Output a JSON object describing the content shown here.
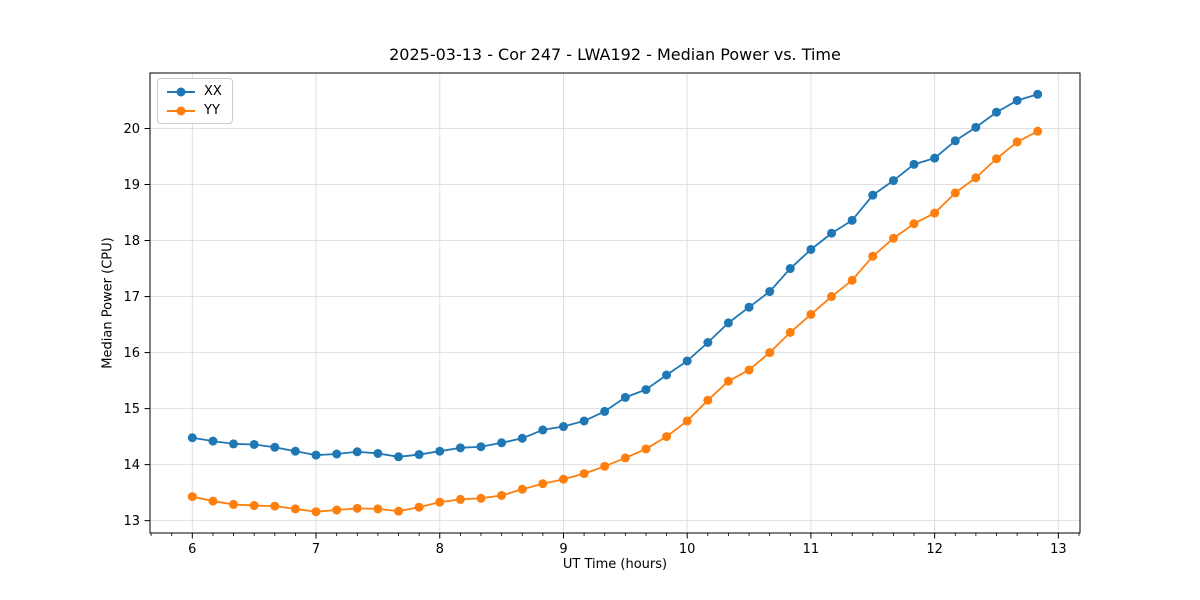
{
  "figure": {
    "title": "2025-03-13 - Cor 247 - LWA192 - Median Power vs. Time",
    "xlabel": "UT Time (hours)",
    "ylabel": "Median Power (CPU)"
  },
  "colors": {
    "series_xx": "#1f77b4",
    "series_yy": "#ff7f0e",
    "grid": "#e0e0e0",
    "axis": "#000000",
    "legend_border": "#cccccc"
  },
  "chart_data": {
    "type": "line",
    "title": "2025-03-13 - Cor 247 - LWA192 - Median Power vs. Time",
    "xlabel": "UT Time (hours)",
    "ylabel": "Median Power (CPU)",
    "xlim": [
      5.658,
      13.175
    ],
    "ylim": [
      12.78,
      20.99
    ],
    "xticks": [
      6,
      7,
      8,
      9,
      10,
      11,
      12,
      13
    ],
    "yticks": [
      13,
      14,
      15,
      16,
      17,
      18,
      19,
      20
    ],
    "x_minor_tick_step": 0.166667,
    "grid": true,
    "legend_position": "upper left",
    "marker": "circle",
    "x": [
      6.0,
      6.167,
      6.333,
      6.5,
      6.667,
      6.833,
      7.0,
      7.167,
      7.333,
      7.5,
      7.667,
      7.833,
      8.0,
      8.167,
      8.333,
      8.5,
      8.667,
      8.833,
      9.0,
      9.167,
      9.333,
      9.5,
      9.667,
      9.833,
      10.0,
      10.167,
      10.333,
      10.5,
      10.667,
      10.833,
      11.0,
      11.167,
      11.333,
      11.5,
      11.667,
      11.833,
      12.0,
      12.167,
      12.333,
      12.5,
      12.667,
      12.833
    ],
    "series": [
      {
        "name": "XX",
        "color": "#1f77b4",
        "values": [
          14.48,
          14.42,
          14.37,
          14.36,
          14.31,
          14.24,
          14.17,
          14.19,
          14.23,
          14.2,
          14.14,
          14.18,
          14.24,
          14.3,
          14.32,
          14.39,
          14.47,
          14.62,
          14.68,
          14.78,
          14.95,
          15.2,
          15.34,
          15.6,
          15.85,
          16.18,
          16.53,
          16.81,
          17.09,
          17.5,
          17.84,
          18.13,
          18.36,
          18.81,
          19.07,
          19.36,
          19.47,
          19.78,
          20.02,
          20.29,
          20.5,
          20.61
        ]
      },
      {
        "name": "YY",
        "color": "#ff7f0e",
        "values": [
          13.43,
          13.35,
          13.29,
          13.27,
          13.26,
          13.21,
          13.16,
          13.19,
          13.22,
          13.21,
          13.17,
          13.24,
          13.33,
          13.38,
          13.4,
          13.45,
          13.56,
          13.66,
          13.74,
          13.84,
          13.97,
          14.12,
          14.28,
          14.5,
          14.78,
          15.15,
          15.49,
          15.69,
          16.0,
          16.36,
          16.68,
          17.0,
          17.29,
          17.72,
          18.04,
          18.3,
          18.49,
          18.85,
          19.12,
          19.46,
          19.76,
          19.95
        ]
      }
    ]
  }
}
